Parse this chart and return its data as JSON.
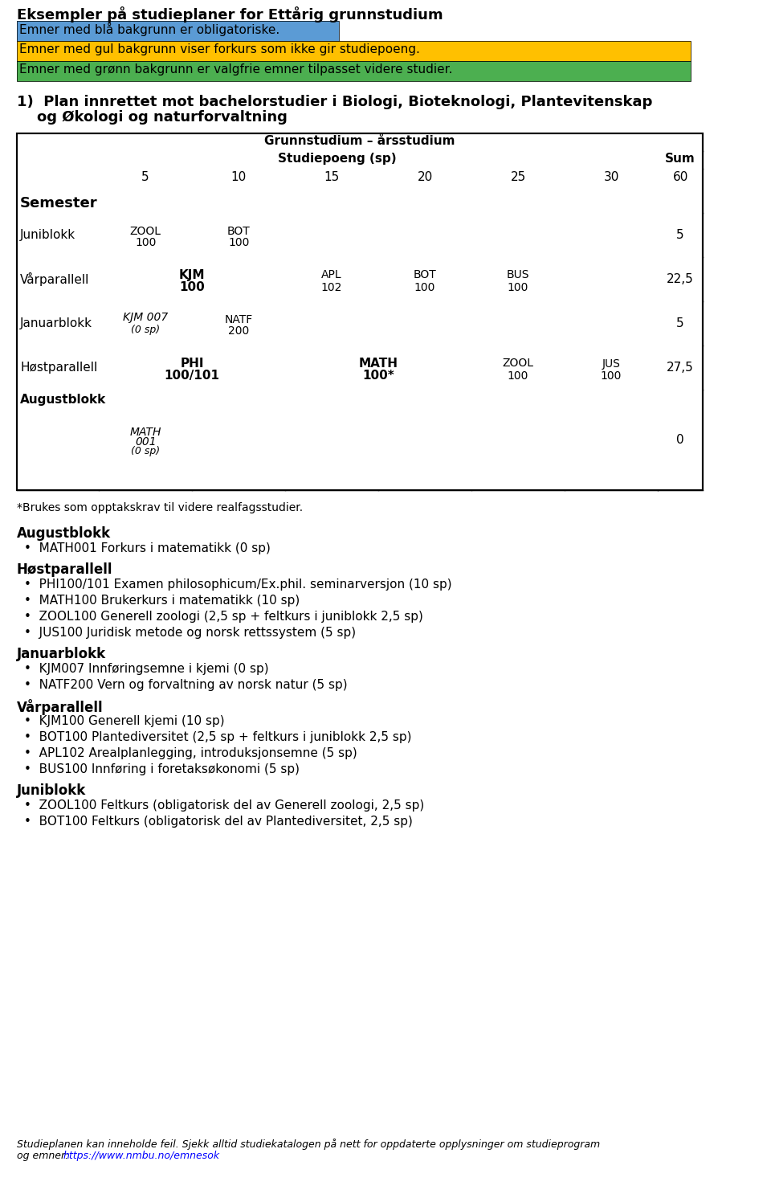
{
  "title": "Eksempler på studieplaner for Ettårig grunnstudium",
  "legend_blue_text": "Emner med blå bakgrunn er obligatoriske.",
  "legend_yellow_text": "Emner med gul bakgrunn viser forkurs som ikke gir studiepoeng.",
  "legend_green_text": "Emner med grønn bakgrunn er valgfrie emner tilpasset videre studier.",
  "section_title": "1)  Plan innrettet mot bachelorstudier i Biologi, Bioteknologi, Plantevitenskap\nog Økologi og naturforvaltning",
  "table_title1": "Grunnstudium – årsstudium",
  "table_title2": "Studiepoeng (sp)",
  "table_sum": "Sum",
  "col_headers": [
    "5",
    "10",
    "15",
    "20",
    "25",
    "30",
    "60"
  ],
  "row_label": "Semester",
  "blue_color": "#5B9BD5",
  "yellow_color": "#FFC000",
  "green_color": "#4CAF50",
  "white_color": "#FFFFFF",
  "footnote": "*Brukes som opptakskrav til videre realfagsstudier.",
  "bullet_section1_title": "Augustblokk",
  "bullet_section1": [
    "MATH001 Forkurs i matematikk (0 sp)"
  ],
  "bullet_section2_title": "Høstparallell",
  "bullet_section2": [
    "PHI100/101 Examen philosophicum/Ex.phil. seminarversjon (10 sp)",
    "MATH100 Brukerkurs i matematikk (10 sp)",
    "ZOOL100 Generell zoologi (2,5 sp + feltkurs i juniblokk 2,5 sp)",
    "JUS100 Juridisk metode og norsk rettssystem (5 sp)"
  ],
  "bullet_section3_title": "Januarblokk",
  "bullet_section3": [
    "KJM007 Innføringsemne i kjemi (0 sp)",
    "NATF200 Vern og forvaltning av norsk natur (5 sp)"
  ],
  "bullet_section4_title": "Vårparallell",
  "bullet_section4": [
    "KJM100 Generell kjemi (10 sp)",
    "BOT100 Plantediversitet (2,5 sp + feltkurs i juniblokk 2,5 sp)",
    "APL102 Arealplanlegging, introduksjonsemne (5 sp)",
    "BUS100 Innføring i foretaksøkonomi (5 sp)"
  ],
  "bullet_section5_title": "Juniblokk",
  "bullet_section5": [
    "ZOOL100 Feltkurs (obligatorisk del av Generell zoologi, 2,5 sp)",
    "BOT100 Feltkurs (obligatorisk del av Plantediversitet, 2,5 sp)"
  ],
  "footer_italic": "Studieplanen kan inneholde feil. Sjekk alltid studiekatalogen på nett for oppdaterte opplysninger om studieprogram\nog emner: https://www.nmbu.no/emnesok"
}
